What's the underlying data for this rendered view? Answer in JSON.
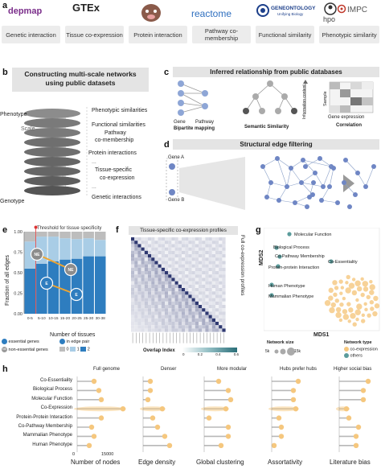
{
  "panel_a": {
    "letter": "a",
    "logos": [
      "depmap",
      "GTEx",
      "reactome",
      "GENEONTOLOGY",
      "Unifying Biology",
      "hpo",
      "IMPC"
    ],
    "sources": [
      "Genetic interaction",
      "Tissue co-expression",
      "Protein interaction",
      "Pathway co-membership",
      "Functional similarity",
      "Phenotypic similarity"
    ]
  },
  "panel_b": {
    "letter": "b",
    "title_line1": "Constructing multi-scale networks",
    "title_line2": "using public datasets",
    "phenotype": "Phenotype",
    "scale": "Scale",
    "genotype": "Genotype",
    "layers": [
      "Phenotypic similarities",
      "Functional similarities",
      "Pathway",
      "co-membership",
      "Protein interactions",
      "Tissue-specific",
      "co-expression",
      "Genetic interactions"
    ],
    "dots": "..."
  },
  "panel_c": {
    "letter": "c",
    "title": "Inferred relationship from public databases",
    "gene": "Gene",
    "pathway": "Pathway",
    "bipartite": "Bipartite mapping",
    "semantic": "Semantic Similarity",
    "info_content": "Information content",
    "sample": "Sample",
    "gene_expression": "Gene expression",
    "correlation": "Correlation"
  },
  "panel_d": {
    "letter": "d",
    "title": "Structural edge filtering",
    "gene_a": "Gene A",
    "gene_b": "Gene B"
  },
  "panel_e": {
    "letter": "e",
    "threshold": "Threshold for tissue specificity",
    "ylabel": "Fraction of all edges",
    "xlabel": "Number of tissues",
    "yticks": [
      "0.00",
      "0.25",
      "0.50",
      "0.75",
      "1.00"
    ],
    "node_ne": "NE",
    "node_e": "E",
    "legend_essential": "essential genes",
    "legend_nonessential": "non-essential genes",
    "legend_edge_pair": "in edge pair",
    "legend_counts": [
      "0",
      "1",
      "2"
    ],
    "colors": {
      "zero": "#bdbdbd",
      "one": "#a9cde6",
      "two": "#2e7dbf"
    }
  },
  "panel_f": {
    "letter": "f",
    "title": "Tissue-specific co-expression profiles",
    "side_label": "Full co-expression profiles",
    "legend_title": "Overlap Index",
    "legend_ticks": [
      "0",
      "0.2",
      "0.4",
      "0.6"
    ]
  },
  "panel_g": {
    "letter": "g",
    "xlabel": "MDS1",
    "ylabel": "MDS2",
    "points": [
      "Molecular Function",
      "Biological Process",
      "Co-Pathway Membership",
      "Co-Essentiality",
      "Protein-protein Interaction",
      "Human Phenotype",
      "Mammalian Phenotype"
    ],
    "size_title": "Network size",
    "size_small": "5k",
    "size_large": "15k",
    "type_title": "Network type",
    "type_coexp": "co-expression",
    "type_others": "others",
    "colors": {
      "coexp": "#f5c77e",
      "others": "#5b9c9c"
    }
  },
  "panel_h": {
    "letter": "h",
    "rows": [
      "Co-Essentiality",
      "Biological Process",
      "Molecular Function",
      "Co-Expression",
      "Protein-Protein Interaction",
      "Co-Pathway Membership",
      "Mammalian Phenotype",
      "Human Phenotype"
    ],
    "column_titles": [
      "Full genome",
      "Denser",
      "More modular",
      "Hubs prefer hubs",
      "Higher social bias"
    ],
    "column_xlabels": [
      "Number of nodes",
      "Edge density",
      "Global clustering",
      "Assortativity",
      "Literature bias"
    ],
    "first_ticks": [
      "0",
      "15000"
    ]
  },
  "chart_data": [
    {
      "type": "bar",
      "panel": "e",
      "stacked": true,
      "categories": [
        "0-5",
        "5-10",
        "10-15",
        "15-20",
        "20-25",
        "25-30",
        "30-38"
      ],
      "series": [
        {
          "name": "0",
          "values": [
            0.12,
            0.06,
            0.06,
            0.08,
            0.09,
            0.08,
            0.1
          ]
        },
        {
          "name": "1",
          "values": [
            0.33,
            0.33,
            0.3,
            0.26,
            0.24,
            0.22,
            0.2
          ]
        },
        {
          "name": "2",
          "values": [
            0.55,
            0.61,
            0.64,
            0.66,
            0.67,
            0.7,
            0.7
          ]
        }
      ],
      "xlabel": "Number of tissues",
      "ylabel": "Fraction of all edges",
      "ylim": [
        0,
        1
      ]
    },
    {
      "type": "heatmap",
      "panel": "f",
      "title": "Tissue-specific co-expression profiles",
      "legend": "Overlap Index",
      "range": [
        0,
        0.6
      ]
    },
    {
      "type": "scatter",
      "panel": "g",
      "xlabel": "MDS1",
      "ylabel": "MDS2",
      "named_points": [
        "Molecular Function",
        "Biological Process",
        "Co-Pathway Membership",
        "Co-Essentiality",
        "Protein-protein Interaction",
        "Human Phenotype",
        "Mammalian Phenotype"
      ]
    }
  ]
}
